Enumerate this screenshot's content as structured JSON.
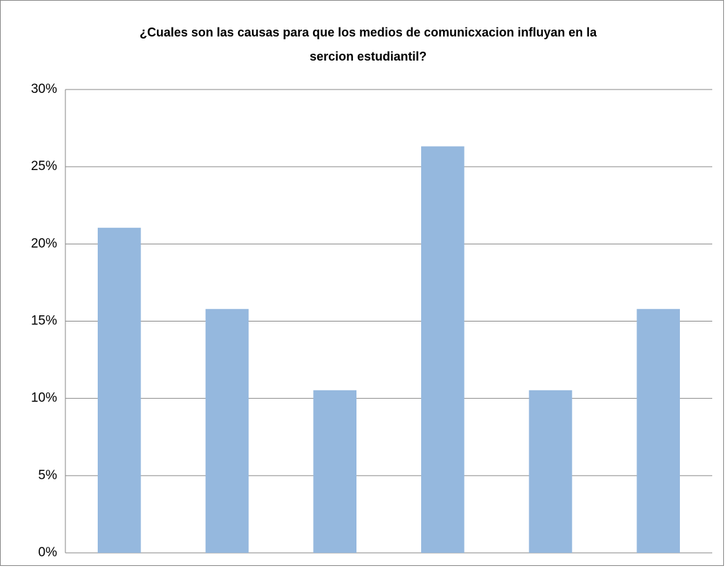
{
  "chart_data": {
    "type": "bar",
    "title": "¿Cuales son las causas para que los medios de comunicxacion influyan en la sercion estudiantil?",
    "categories": [
      null,
      null,
      null,
      null,
      null,
      null
    ],
    "values": [
      21.05,
      15.79,
      10.53,
      26.32,
      10.53,
      15.79
    ],
    "color": "#95b8de",
    "ylim": [
      0,
      30
    ],
    "yticks": [
      {
        "value": 0,
        "label": "0%"
      },
      {
        "value": 5,
        "label": "5%"
      },
      {
        "value": 10,
        "label": "10%"
      },
      {
        "value": 15,
        "label": "15%"
      },
      {
        "value": 20,
        "label": "20%"
      },
      {
        "value": 25,
        "label": "25%"
      },
      {
        "value": 30,
        "label": "30%"
      }
    ],
    "grid": true
  }
}
